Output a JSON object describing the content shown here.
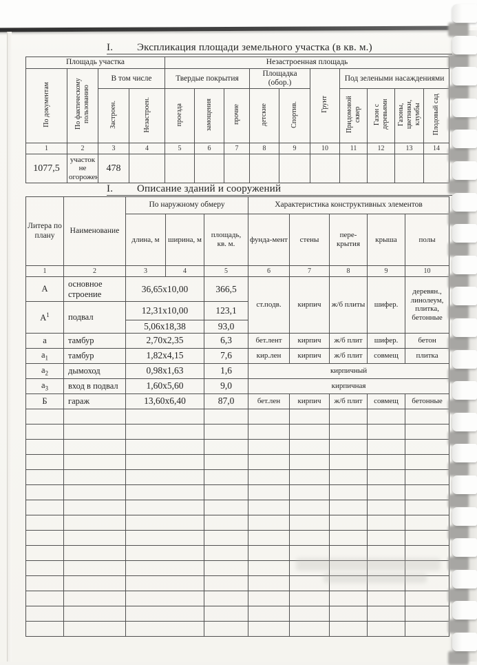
{
  "document": {
    "table1": {
      "number": "I.",
      "title": "Экспликация площади земельного участка (в кв. м.)",
      "group_left": "Площадь участка",
      "group_right": "Незастроенная площадь",
      "sub_included": "В том числе",
      "sub_hard": "Твердые покрытия",
      "sub_playground": "Площадка (обор.)",
      "sub_green": "Под зелеными насаждениями",
      "cols": [
        "По документам",
        "По фактическому пользованию",
        "Застроен.",
        "Незастроен.",
        "проезда",
        "замощения",
        "прочие",
        "детские",
        "Спортив.",
        "Грунт",
        "Придомовой сквер",
        "Газон с деревьями",
        "Газоны, цветники, клумбы",
        "Плодовый сад"
      ],
      "nums": [
        "1",
        "2",
        "3",
        "4",
        "5",
        "6",
        "7",
        "8",
        "9",
        "10",
        "11",
        "12",
        "13",
        "14"
      ],
      "row": {
        "by_documents": "1077,5",
        "by_fact": "участок не огорожен",
        "built": "478"
      }
    },
    "table2": {
      "number": "I.",
      "title": "Описание зданий и сооружений",
      "headers": {
        "litera": "Литера по плану",
        "name": "Наименование",
        "outer": "По наружному обмеру",
        "characteristics": "Характеристика конструктивных элементов",
        "length": "длина, м",
        "width": "ширина, м",
        "area": "площадь, кв. м.",
        "foundation": "фунда-мент",
        "walls": "стены",
        "ceilings": "пере-крытия",
        "roof": "крыша",
        "floors": "полы"
      },
      "nums": [
        "1",
        "2",
        "3",
        "4",
        "5",
        "6",
        "7",
        "8",
        "9",
        "10"
      ],
      "rows": {
        "A": {
          "litera": "А",
          "name": "основное строение",
          "dim": "36,65x10,00",
          "area": "366,5",
          "foundation": "ст.подв.",
          "walls": "кирпич",
          "ceilings": "ж/б плиты",
          "roof": "шифер.",
          "floors": "деревян., линолеум, плитка, бетонные"
        },
        "A1": {
          "litera_base": "А",
          "litera_sup": "1",
          "name": "подвал",
          "dim1": "12,31x10,00",
          "area1": "123,1",
          "dim2": "5,06x18,38",
          "area2": "93,0"
        },
        "a": {
          "litera": "а",
          "name": "тамбур",
          "dim": "2,70x2,35",
          "area": "6,3",
          "foundation": "бет.лент",
          "walls": "кирпич",
          "ceilings": "ж/б плит",
          "roof": "шифер.",
          "floors": "бетон"
        },
        "a1": {
          "litera_base": "а",
          "litera_sub": "1",
          "name": "тамбур",
          "dim": "1,82x4,15",
          "area": "7,6",
          "foundation": "кир.лен",
          "walls": "кирпич",
          "ceilings": "ж/б плит",
          "roof": "совмещ",
          "floors": "плитка"
        },
        "a2": {
          "litera_base": "а",
          "litera_sub": "2",
          "name": "дымоход",
          "dim": "0,98x1,63",
          "area": "1,6",
          "merged": "кирпичный"
        },
        "a3": {
          "litera_base": "а",
          "litera_sub": "3",
          "name": "вход в подвал",
          "dim": "1,60x5,60",
          "area": "9,0",
          "merged": "кирпичная"
        },
        "B": {
          "litera": "Б",
          "name": "гараж",
          "dim": "13,60x6,40",
          "area": "87,0",
          "foundation": "бет.лен",
          "walls": "кирпич",
          "ceilings": "ж/б плит",
          "roof": "совмещ",
          "floors": "бетонные"
        }
      },
      "empty_rows": 15
    }
  }
}
